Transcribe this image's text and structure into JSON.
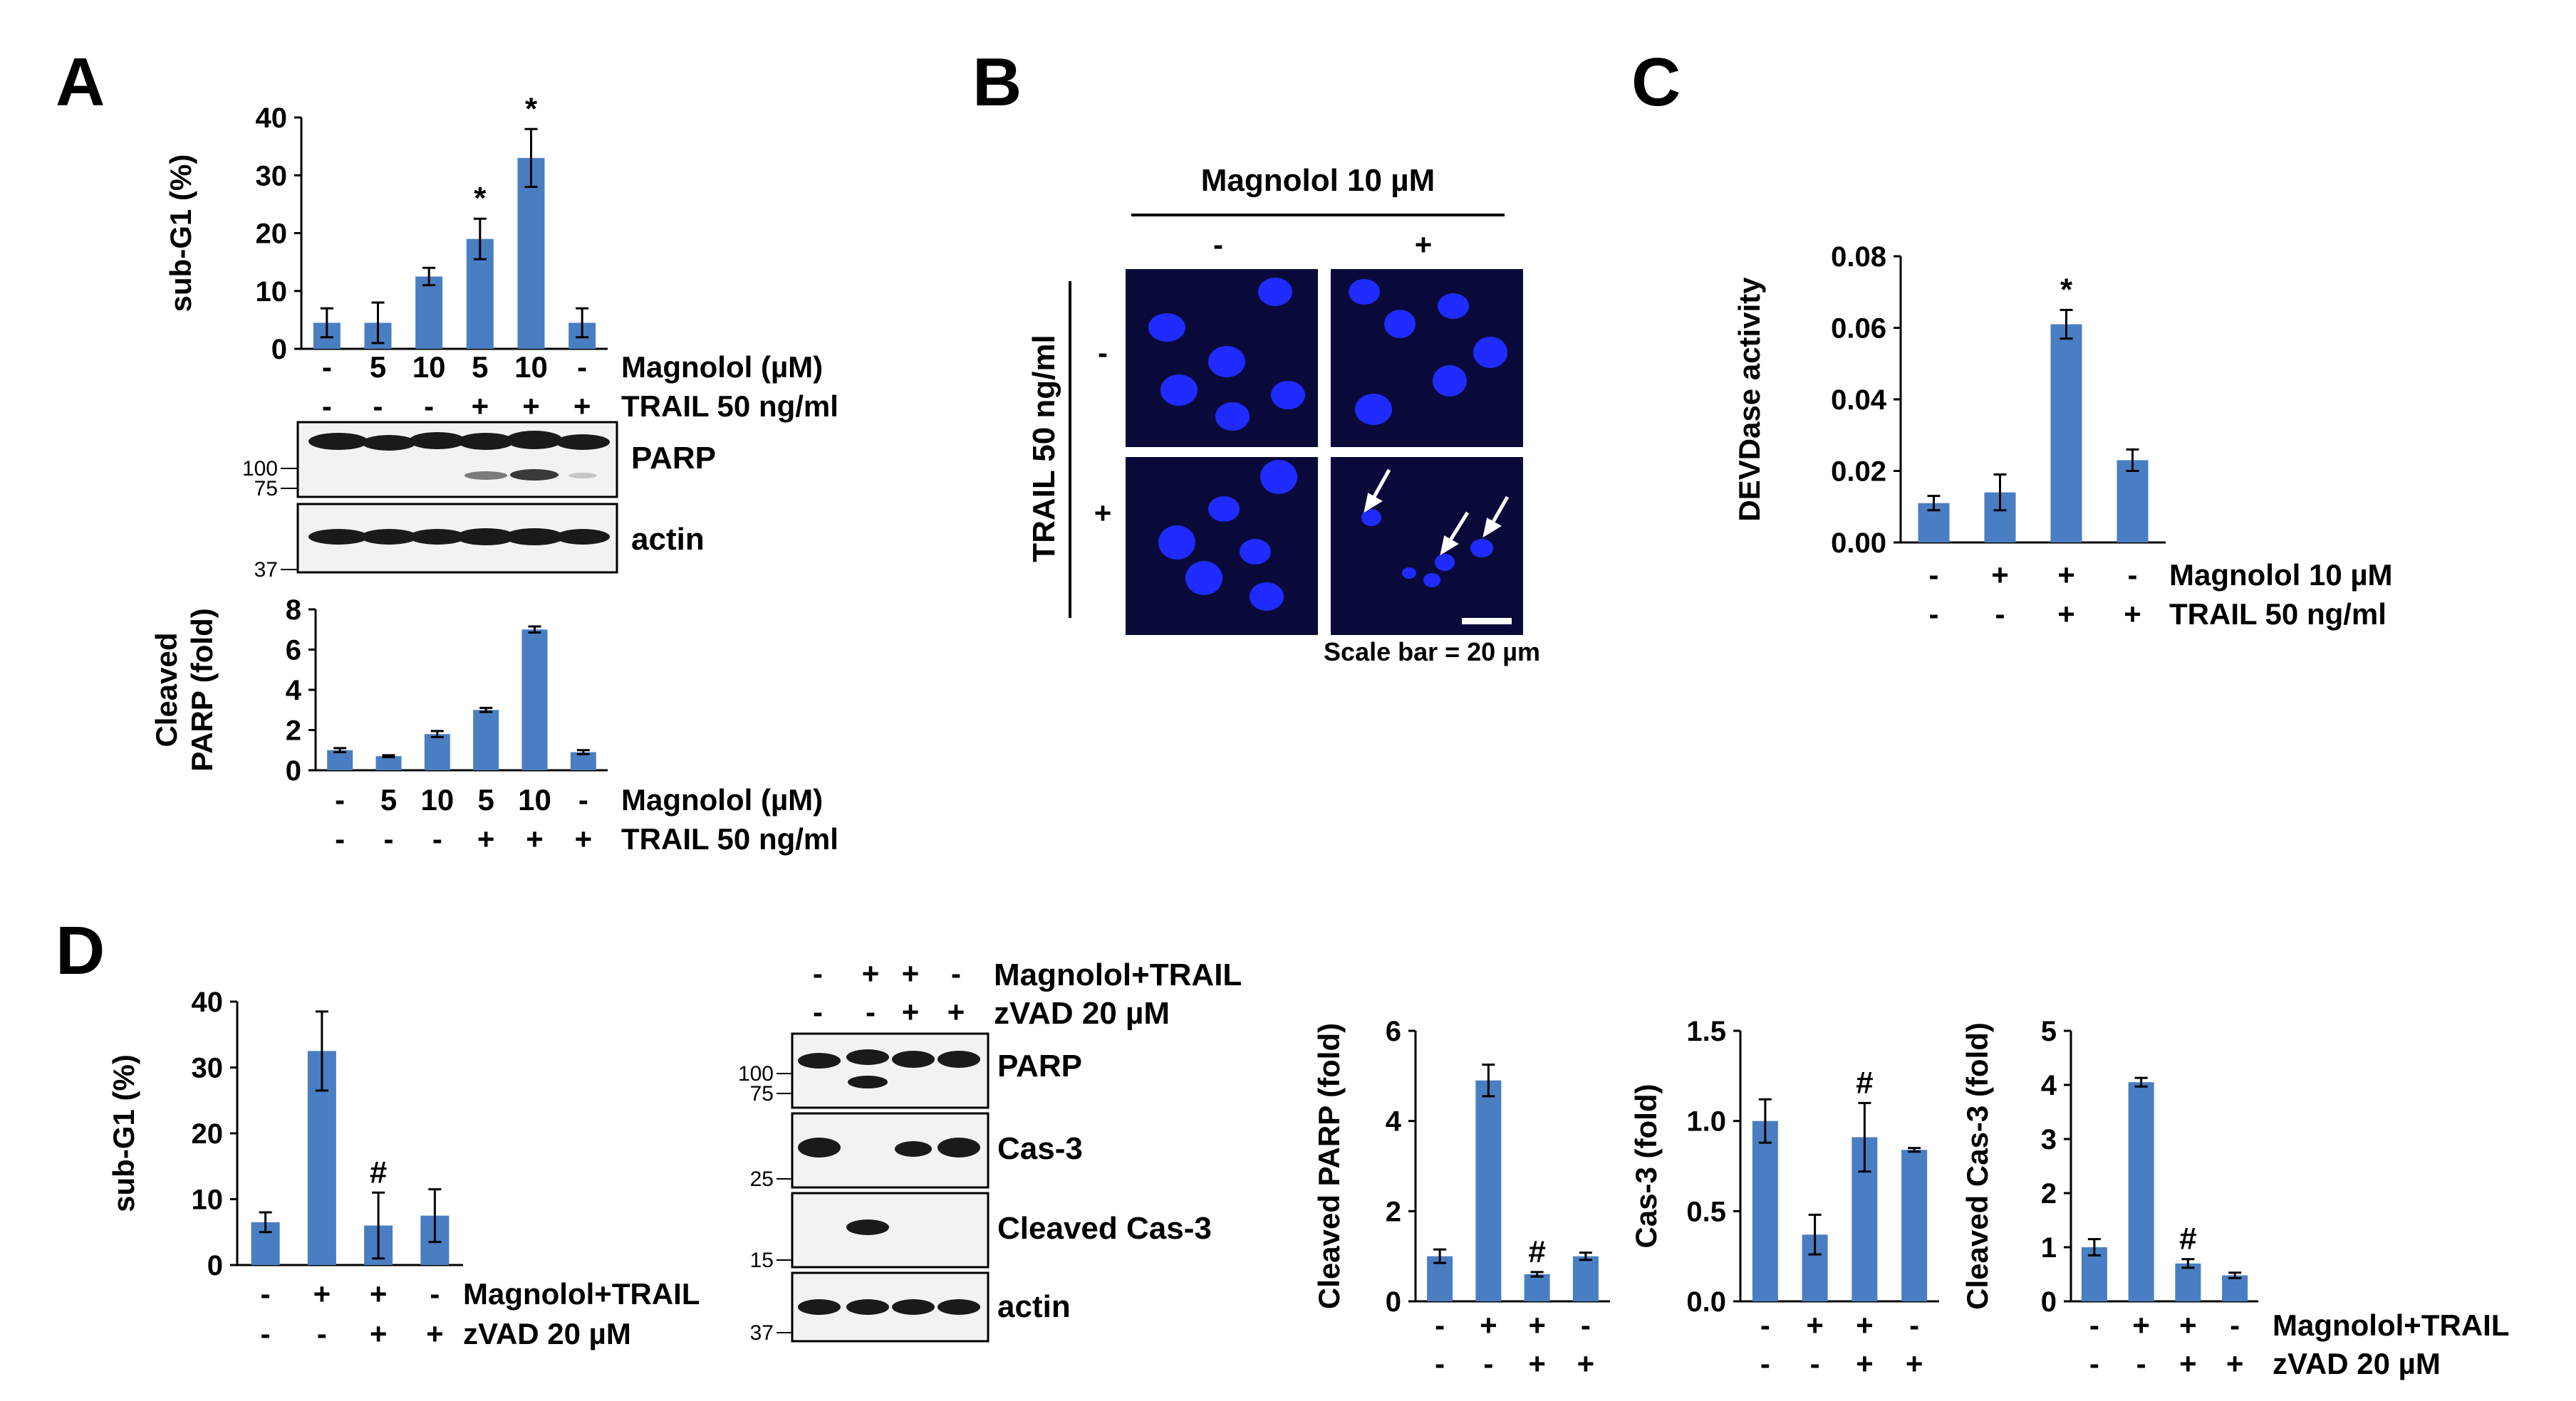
{
  "figure": {
    "bar_color": "#4a7ec2",
    "micro_bg": "#0a0a3a",
    "nucleus_color": "#1f2bff"
  },
  "chart_data": [
    {
      "id": "A-subG1",
      "panel": "A",
      "type": "bar",
      "ylabel": "sub-G1 (%)",
      "ylim": [
        0,
        40
      ],
      "yticks": [
        "0",
        "10",
        "20",
        "30",
        "40"
      ],
      "values": [
        4.5,
        4.5,
        12.5,
        19,
        33,
        4.5
      ],
      "errors": [
        2.5,
        3.5,
        1.5,
        3.5,
        5,
        2.5
      ],
      "sig": [
        "",
        "",
        "",
        "*",
        "*",
        ""
      ],
      "conditions": [
        {
          "label": "Magnolol (µM)",
          "values": [
            "-",
            "5",
            "10",
            "5",
            "10",
            "-"
          ]
        },
        {
          "label": "TRAIL 50 ng/ml",
          "values": [
            "-",
            "-",
            "-",
            "+",
            "+",
            "+"
          ]
        }
      ]
    },
    {
      "id": "A-cleavedPARP",
      "panel": "A",
      "type": "bar",
      "ylabel": "Cleaved PARP (fold)",
      "ylabel_lines": [
        "Cleaved",
        "PARP (fold)"
      ],
      "ylim": [
        0,
        8
      ],
      "yticks": [
        "0",
        "2",
        "4",
        "6",
        "8"
      ],
      "values": [
        1.0,
        0.7,
        1.8,
        3.0,
        7.0,
        0.9
      ],
      "errors": [
        0.1,
        0.05,
        0.15,
        0.1,
        0.15,
        0.1
      ],
      "sig": [
        "",
        "",
        "",
        "",
        "",
        ""
      ],
      "conditions": [
        {
          "label": "Magnolol (µM)",
          "values": [
            "-",
            "5",
            "10",
            "5",
            "10",
            "-"
          ]
        },
        {
          "label": "TRAIL 50 ng/ml",
          "values": [
            "-",
            "-",
            "-",
            "+",
            "+",
            "+"
          ]
        }
      ]
    },
    {
      "id": "C-devdase",
      "panel": "C",
      "type": "bar",
      "ylabel": "DEVDase activity",
      "ylim": [
        0,
        0.08
      ],
      "yticks": [
        "0.00",
        "0.02",
        "0.04",
        "0.06",
        "0.08"
      ],
      "values": [
        0.011,
        0.014,
        0.061,
        0.023
      ],
      "errors": [
        0.002,
        0.005,
        0.004,
        0.003
      ],
      "sig": [
        "",
        "",
        "*",
        ""
      ],
      "conditions": [
        {
          "label": "Magnolol 10 µM",
          "values": [
            "-",
            "+",
            "+",
            "-"
          ]
        },
        {
          "label": "TRAIL 50 ng/ml",
          "values": [
            "-",
            "-",
            "+",
            "+"
          ]
        }
      ]
    },
    {
      "id": "D-subG1",
      "panel": "D",
      "type": "bar",
      "ylabel": "sub-G1 (%)",
      "ylim": [
        0,
        40
      ],
      "yticks": [
        "0",
        "10",
        "20",
        "30",
        "40"
      ],
      "values": [
        6.5,
        32.5,
        6,
        7.5
      ],
      "errors": [
        1.5,
        6,
        5,
        4
      ],
      "sig": [
        "",
        "",
        "#",
        ""
      ],
      "conditions": [
        {
          "label": "Magnolol+TRAIL",
          "values": [
            "-",
            "+",
            "+",
            "-"
          ]
        },
        {
          "label": "zVAD 20 µM",
          "values": [
            "-",
            "-",
            "+",
            "+"
          ]
        }
      ]
    },
    {
      "id": "D-cleavedPARP",
      "panel": "D",
      "type": "bar",
      "ylabel": "Cleaved PARP (fold)",
      "ylim": [
        0,
        6
      ],
      "yticks": [
        "0",
        "2",
        "4",
        "6"
      ],
      "values": [
        1.0,
        4.9,
        0.6,
        1.0
      ],
      "errors": [
        0.15,
        0.35,
        0.05,
        0.08
      ],
      "sig": [
        "",
        "",
        "#",
        ""
      ],
      "conditions": [
        {
          "label": "",
          "values": [
            "-",
            "+",
            "+",
            "-"
          ]
        },
        {
          "label": "",
          "values": [
            "-",
            "-",
            "+",
            "+"
          ]
        }
      ]
    },
    {
      "id": "D-cas3",
      "panel": "D",
      "type": "bar",
      "ylabel": "Cas-3 (fold)",
      "ylim": [
        0,
        1.5
      ],
      "yticks": [
        "0.0",
        "0.5",
        "1.0",
        "1.5"
      ],
      "values": [
        1.0,
        0.37,
        0.91,
        0.84
      ],
      "errors": [
        0.12,
        0.11,
        0.19,
        0.01
      ],
      "sig": [
        "",
        "",
        "#",
        ""
      ],
      "conditions": [
        {
          "label": "",
          "values": [
            "-",
            "+",
            "+",
            "-"
          ]
        },
        {
          "label": "",
          "values": [
            "-",
            "-",
            "+",
            "+"
          ]
        }
      ]
    },
    {
      "id": "D-cleavedCas3",
      "panel": "D",
      "type": "bar",
      "ylabel": "Cleaved Cas-3 (fold)",
      "ylim": [
        0,
        5
      ],
      "yticks": [
        "0",
        "1",
        "2",
        "3",
        "4",
        "5"
      ],
      "values": [
        1.0,
        4.05,
        0.7,
        0.48
      ],
      "errors": [
        0.15,
        0.08,
        0.08,
        0.05
      ],
      "sig": [
        "",
        "",
        "#",
        ""
      ],
      "conditions": [
        {
          "label": "Magnolol+TRAIL",
          "values": [
            "-",
            "+",
            "+",
            "-"
          ]
        },
        {
          "label": "zVAD 20 µM",
          "values": [
            "-",
            "-",
            "+",
            "+"
          ]
        }
      ]
    }
  ],
  "panel_A": {
    "letter": "A",
    "blots": [
      {
        "label": "PARP",
        "mw": [
          "100",
          "75"
        ]
      },
      {
        "label": "actin",
        "mw": [
          "37"
        ]
      }
    ]
  },
  "panel_B": {
    "letter": "B",
    "magnolol_header": "Magnolol 10 µM",
    "magnolol_minus": "-",
    "magnolol_plus": "+",
    "trail_label": "TRAIL 50 ng/ml",
    "trail_minus": "-",
    "trail_plus": "+",
    "scale_bar": "Scale bar = 20 µm"
  },
  "panel_C": {
    "letter": "C"
  },
  "panel_D": {
    "letter": "D",
    "header": [
      {
        "label": "Magnolol+TRAIL",
        "values": [
          "-",
          "+",
          "+",
          "-"
        ]
      },
      {
        "label": "zVAD 20 µM",
        "values": [
          "-",
          "-",
          "+",
          "+"
        ]
      }
    ],
    "blots": [
      {
        "label": "PARP",
        "mw": [
          "100",
          "75"
        ]
      },
      {
        "label": "Cas-3",
        "mw": [
          "25"
        ]
      },
      {
        "label": "Cleaved Cas-3",
        "mw": [
          "15"
        ]
      },
      {
        "label": "actin",
        "mw": [
          "37"
        ]
      }
    ]
  }
}
